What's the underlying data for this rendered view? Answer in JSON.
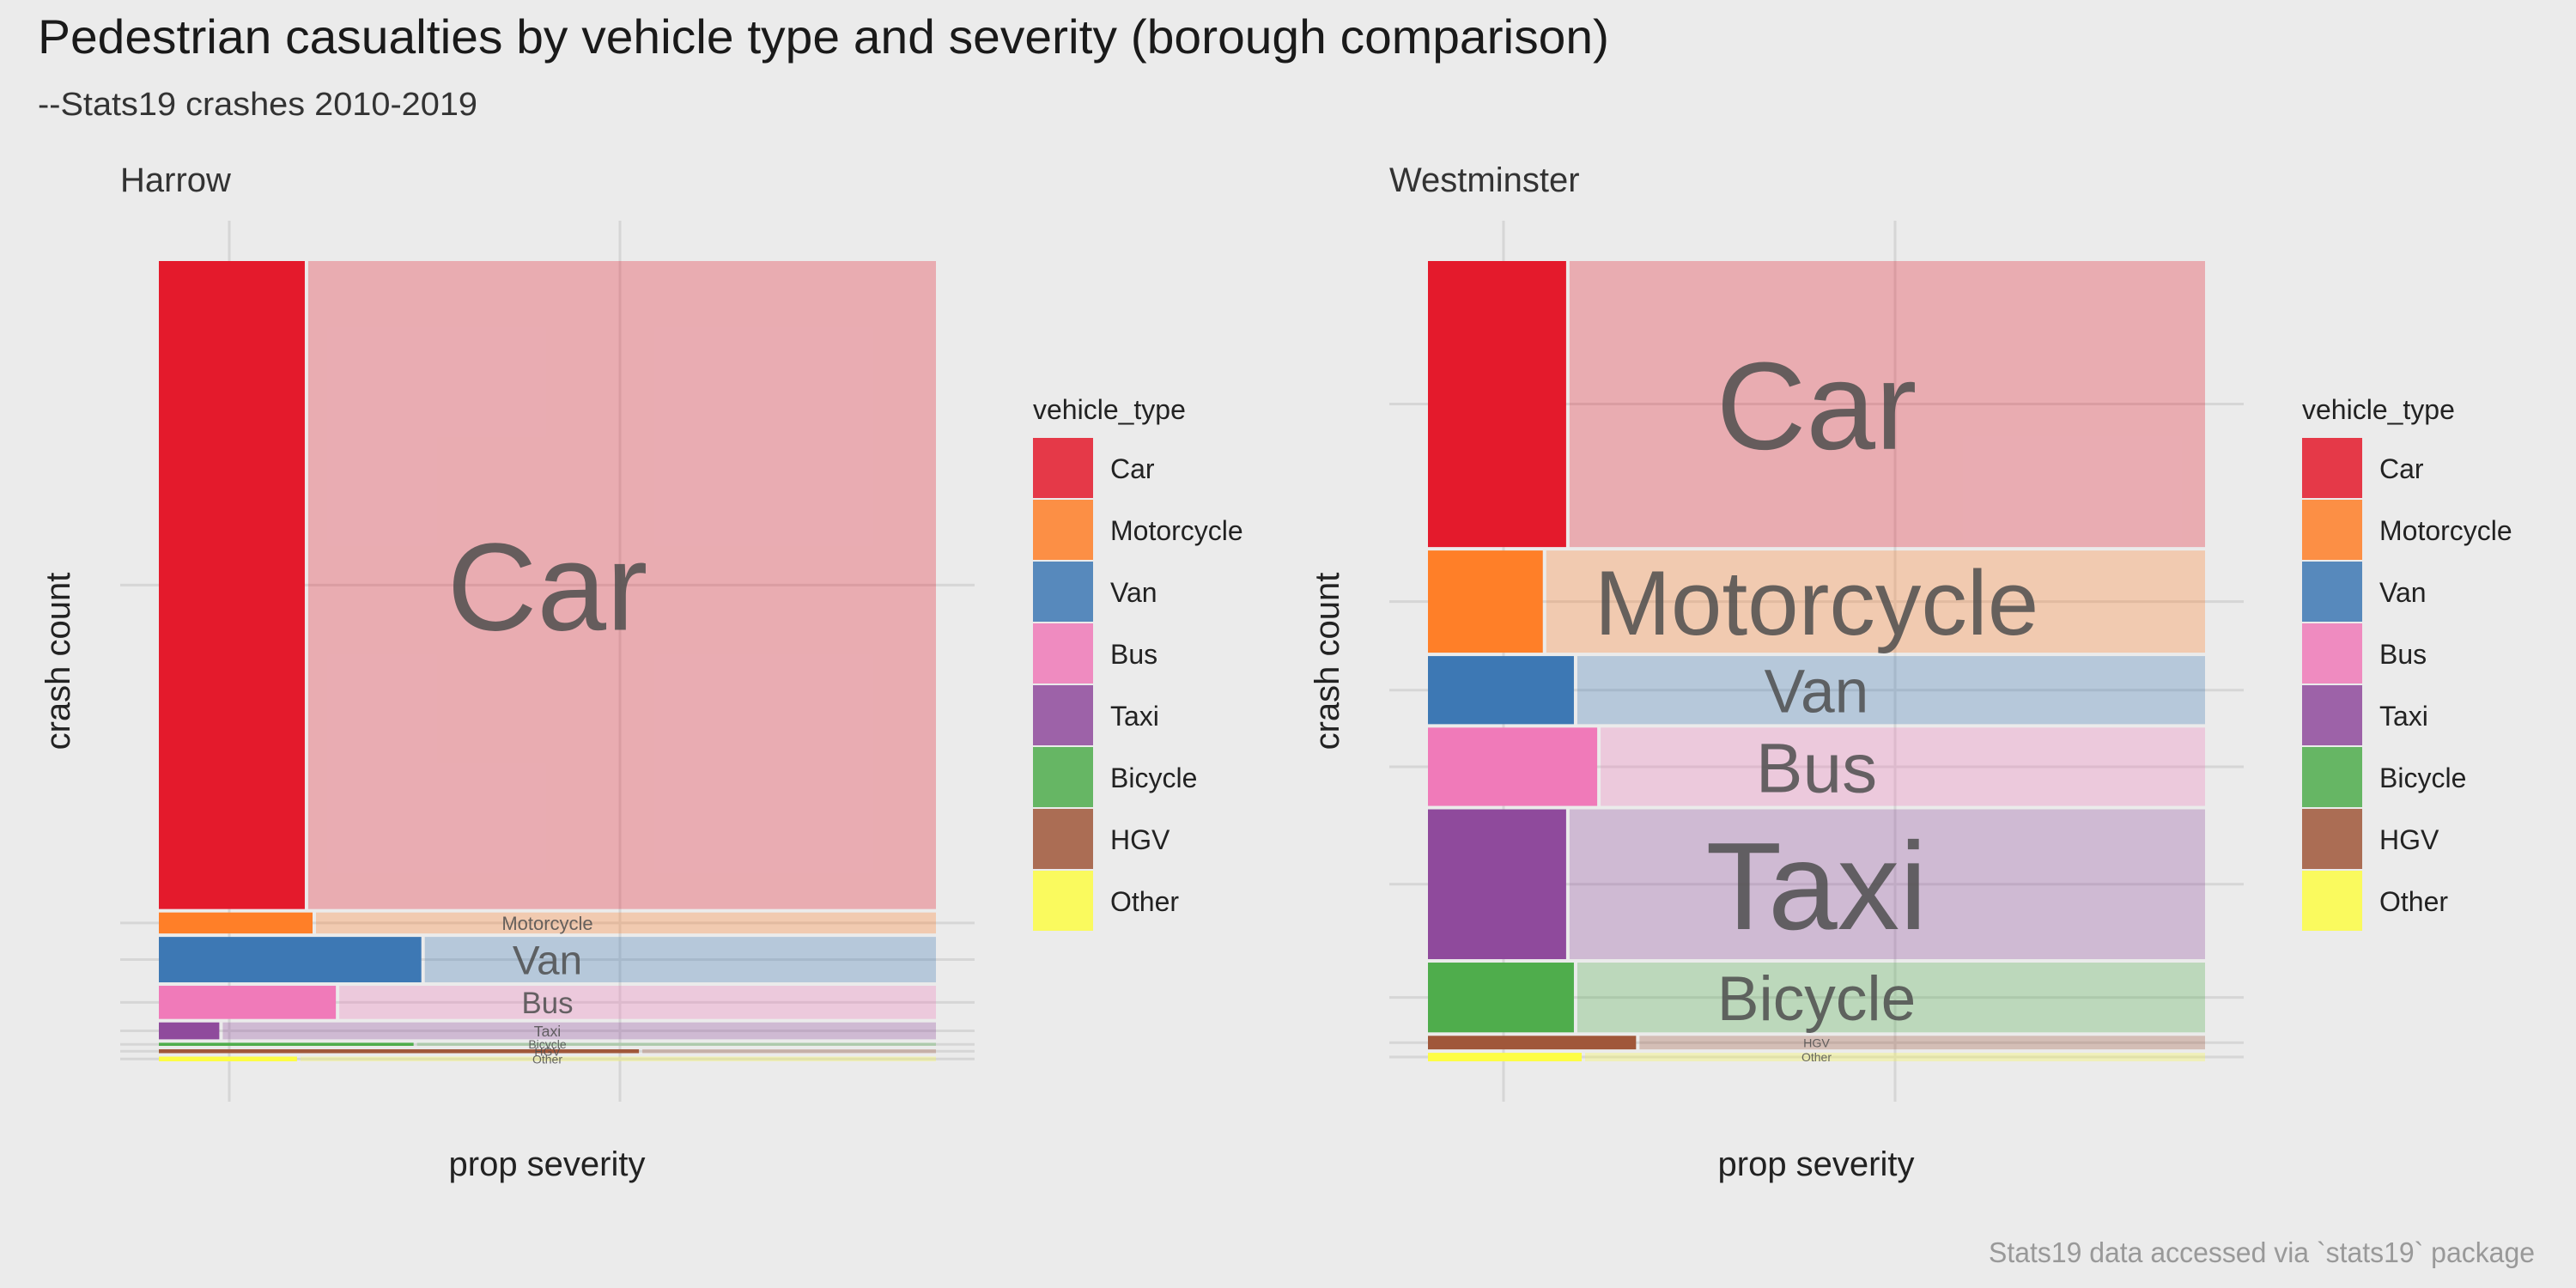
{
  "title": "Pedestrian casualties by vehicle type and severity (borough comparison)",
  "subtitle": "--Stats19 crashes 2010-2019",
  "caption": "Stats19 data accessed via `stats19` package",
  "colors": {
    "Car": "#e41a2c",
    "Motorcycle": "#ff7f28",
    "Van": "#3d78b4",
    "Bus": "#f07ab9",
    "Taxi": "#8f4a9c",
    "Bicycle": "#4fad4c",
    "HGV": "#a0573a",
    "Other": "#fdfd45"
  },
  "chart_data": [
    {
      "type": "mosaic",
      "panel": "Harrow",
      "xlabel": "prop severity",
      "ylabel": "crash count",
      "legend_title": "vehicle_type",
      "legend_position": "right",
      "categories": [
        "Car",
        "Motorcycle",
        "Van",
        "Bus",
        "Taxi",
        "Bicycle",
        "HGV",
        "Other"
      ],
      "series": [
        {
          "vehicle_type": "Car",
          "crash_count": 800,
          "prop_ksi": 0.19
        },
        {
          "vehicle_type": "Motorcycle",
          "crash_count": 30,
          "prop_ksi": 0.2
        },
        {
          "vehicle_type": "Van",
          "crash_count": 60,
          "prop_ksi": 0.34
        },
        {
          "vehicle_type": "Bus",
          "crash_count": 45,
          "prop_ksi": 0.23
        },
        {
          "vehicle_type": "Taxi",
          "crash_count": 25,
          "prop_ksi": 0.08
        },
        {
          "vehicle_type": "Bicycle",
          "crash_count": 8,
          "prop_ksi": 0.33
        },
        {
          "vehicle_type": "HGV",
          "crash_count": 9,
          "prop_ksi": 0.62
        },
        {
          "vehicle_type": "Other",
          "crash_count": 10,
          "prop_ksi": 0.18
        }
      ]
    },
    {
      "type": "mosaic",
      "panel": "Westminster",
      "xlabel": "prop severity",
      "ylabel": "crash count",
      "legend_title": "vehicle_type",
      "legend_position": "right",
      "categories": [
        "Car",
        "Motorcycle",
        "Van",
        "Bus",
        "Taxi",
        "Bicycle",
        "HGV",
        "Other"
      ],
      "series": [
        {
          "vehicle_type": "Car",
          "crash_count": 1700,
          "prop_ksi": 0.18
        },
        {
          "vehicle_type": "Motorcycle",
          "crash_count": 620,
          "prop_ksi": 0.15
        },
        {
          "vehicle_type": "Van",
          "crash_count": 420,
          "prop_ksi": 0.19
        },
        {
          "vehicle_type": "Bus",
          "crash_count": 480,
          "prop_ksi": 0.22
        },
        {
          "vehicle_type": "Taxi",
          "crash_count": 900,
          "prop_ksi": 0.18
        },
        {
          "vehicle_type": "Bicycle",
          "crash_count": 430,
          "prop_ksi": 0.19
        },
        {
          "vehicle_type": "HGV",
          "crash_count": 100,
          "prop_ksi": 0.27
        },
        {
          "vehicle_type": "Other",
          "crash_count": 70,
          "prop_ksi": 0.2
        }
      ]
    }
  ]
}
